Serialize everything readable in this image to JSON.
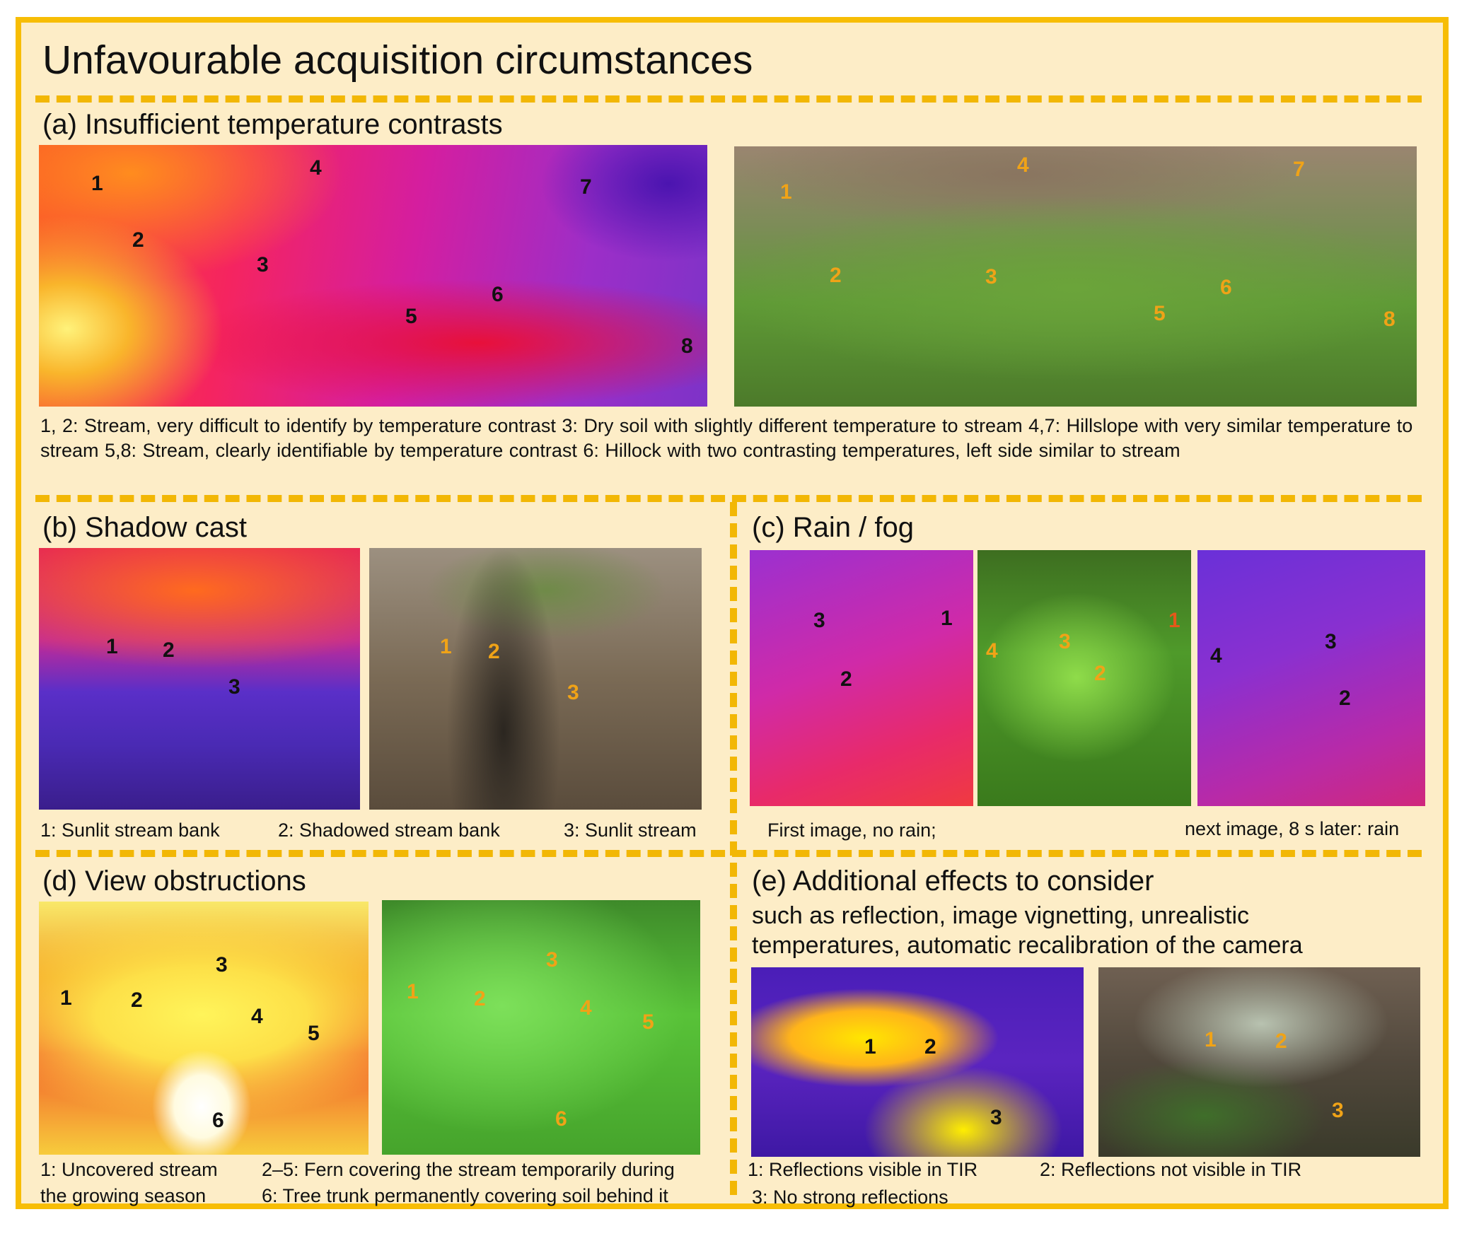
{
  "title": "Unfavourable acquisition circumstances",
  "colors": {
    "frame": "#f7bd05",
    "panel": "#fdedc7",
    "orange_label": "#f0a317",
    "black_label": "#111111"
  },
  "a": {
    "heading": "(a) Insufficient temperature contrasts",
    "tir_labels": [
      "1",
      "2",
      "3",
      "4",
      "5",
      "6",
      "7",
      "8"
    ],
    "rgb_labels": [
      "1",
      "2",
      "3",
      "4",
      "5",
      "6",
      "7",
      "8"
    ],
    "caption": "1, 2: Stream, very difficult to identify by temperature contrast      3: Dry soil with slightly different temperature to stream      4,7: Hillslope with very similar  temperature to stream      5,8: Stream, clearly identifiable by temperature contrast      6: Hillock with two contrasting temperatures, left side similar to stream"
  },
  "b": {
    "heading": "(b) Shadow cast",
    "labels": [
      "1",
      "2",
      "3"
    ],
    "caption1": "1: Sunlit stream bank",
    "caption2": "2: Shadowed stream bank",
    "caption3": "3: Sunlit stream"
  },
  "c": {
    "heading": "(c) Rain / fog",
    "tir1_labels": [
      "3",
      "1",
      "2"
    ],
    "rgb_labels": [
      "4",
      "3",
      "1",
      "2"
    ],
    "tir2_labels": [
      "4",
      "3",
      "2"
    ],
    "caption_left": "First image, no rain;",
    "caption_right": "next image, 8 s later: rain"
  },
  "d": {
    "heading": "(d) View obstructions",
    "labels": [
      "1",
      "2",
      "3",
      "4",
      "5",
      "6"
    ],
    "caption1": "1: Uncovered stream the growing season",
    "caption2a": "2–5: Fern covering the stream temporarily during",
    "caption1b": "the growing season",
    "caption1a": "1: Uncovered stream",
    "caption2b": "6: Tree trunk permanently covering soil behind it"
  },
  "e": {
    "heading": "(e) Additional effects to consider",
    "subheading": "such as reflection, image vignetting, unrealistic temperatures, automatic recalibration of the camera",
    "labels": [
      "1",
      "2",
      "3"
    ],
    "caption1": "1: Reflections visible in TIR",
    "caption2": "2: Reflections not visible in TIR",
    "caption3": "3: No strong reflections"
  }
}
